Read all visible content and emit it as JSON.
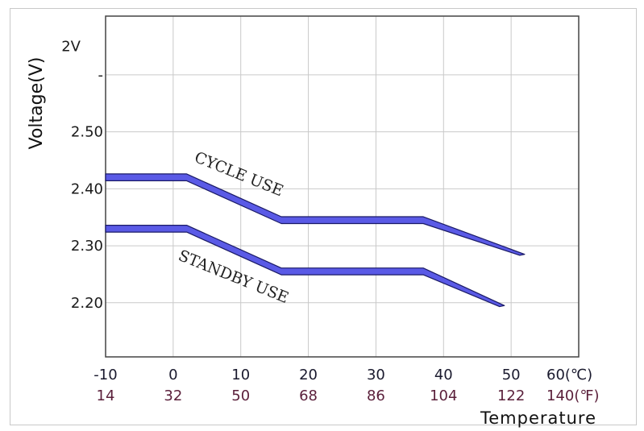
{
  "chart_data": {
    "type": "line",
    "xlabel": "Temperature",
    "ylabel": "Voltage(V)",
    "x_ticks_c": [
      "-10",
      "0",
      "10",
      "20",
      "30",
      "40",
      "50",
      "60(℃)"
    ],
    "x_ticks_f": [
      "14",
      "32",
      "50",
      "68",
      "86",
      "104",
      "122",
      "140(℉)"
    ],
    "x_tick_values": [
      -10,
      0,
      10,
      20,
      30,
      40,
      50,
      60
    ],
    "y_ticks": [
      {
        "label": "2V",
        "value": 2.65
      },
      {
        "label": "-",
        "value": 2.6
      },
      {
        "label": "2.50",
        "value": 2.5
      },
      {
        "label": "2.40",
        "value": 2.4
      },
      {
        "label": "2.30",
        "value": 2.3
      },
      {
        "label": "2.20",
        "value": 2.2
      }
    ],
    "xlim": [
      -10,
      60
    ],
    "ylim": [
      2.105,
      2.703
    ],
    "grid": true,
    "band_width": 0.012,
    "series": [
      {
        "name": "CYCLE USE",
        "x": [
          -10,
          2,
          16,
          37,
          52
        ],
        "y": [
          2.42,
          2.42,
          2.345,
          2.345,
          2.285
        ]
      },
      {
        "name": "STANDBY USE",
        "x": [
          -10,
          2,
          16,
          37,
          49
        ],
        "y": [
          2.33,
          2.33,
          2.255,
          2.255,
          2.195
        ]
      }
    ],
    "band_color": "#5a5ae6",
    "band_edge_color": "#1a1a66"
  }
}
